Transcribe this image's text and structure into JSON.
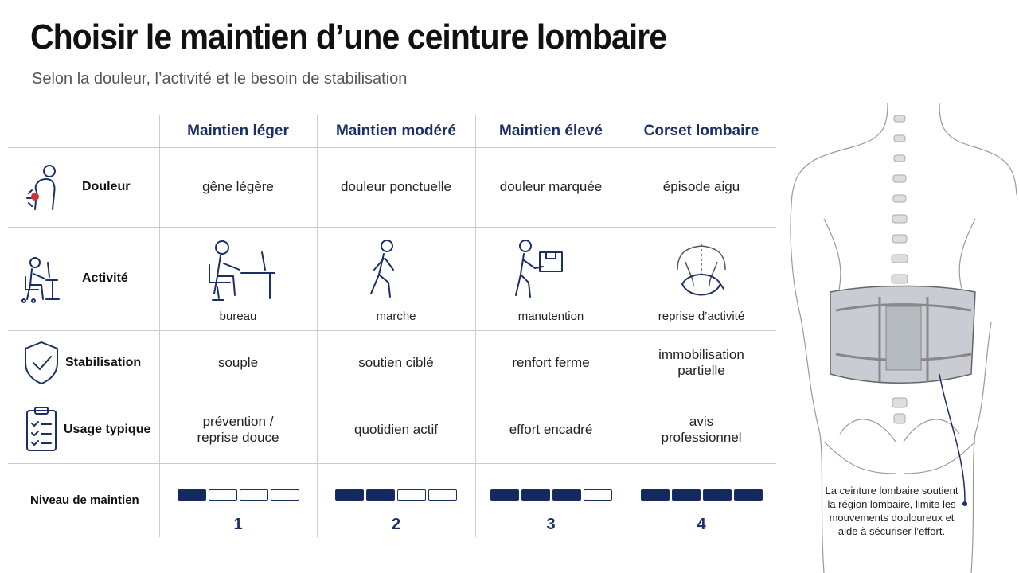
{
  "header": {
    "title": "Choisir le maintien d’une ceinture lombaire",
    "subtitle": "Selon la douleur, l’activité et le besoin de stabilisation"
  },
  "table": {
    "columns": [
      "Maintien léger",
      "Maintien modéré",
      "Maintien élevé",
      "Corset lombaire"
    ],
    "rows": [
      {
        "label": "Douleur",
        "cells": [
          "gêne légère",
          "douleur ponctuelle",
          "douleur marquée",
          "épisode aigu"
        ]
      },
      {
        "label": "Activité",
        "cells": [
          "bureau",
          "marche",
          "manutention",
          "reprise d’activité"
        ]
      },
      {
        "label": "Stabilisation",
        "cells": [
          "souple",
          "soutien ciblé",
          "renfort ferme",
          "immobilisation partielle"
        ]
      },
      {
        "label": "Usage typique",
        "cells": [
          "prévention / reprise douce",
          "quotidien actif",
          "effort encadré",
          "avis professionnel"
        ]
      }
    ],
    "level": {
      "label": "Niveau de maintien",
      "values": [
        1,
        2,
        3,
        4
      ]
    }
  },
  "illustration": {
    "caption": "La ceinture lombaire soutient la région lombaire, limite les mouvements douloureux et aide à sécuriser l’effort."
  }
}
